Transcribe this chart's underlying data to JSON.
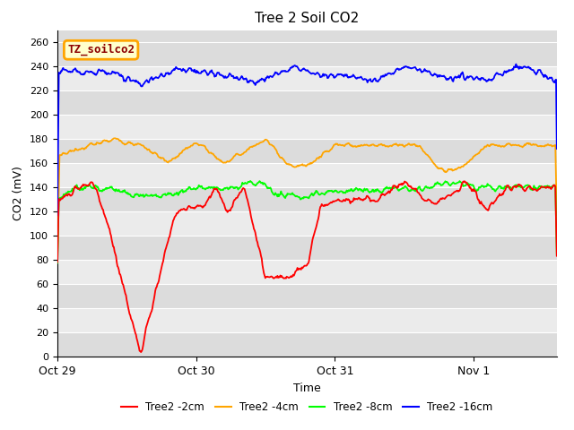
{
  "title": "Tree 2 Soil CO2",
  "xlabel": "Time",
  "ylabel": "CO2 (mV)",
  "ylim": [
    0,
    270
  ],
  "yticks": [
    0,
    20,
    40,
    60,
    80,
    100,
    120,
    140,
    160,
    180,
    200,
    220,
    240,
    260
  ],
  "annotation_text": "TZ_soilco2",
  "legend_labels": [
    "Tree2 -2cm",
    "Tree2 -4cm",
    "Tree2 -8cm",
    "Tree2 -16cm"
  ],
  "line_colors": [
    "red",
    "orange",
    "lime",
    "blue"
  ],
  "band_colors": [
    "#dcdcdc",
    "#ebebeb"
  ],
  "title_fontsize": 11,
  "figsize": [
    6.4,
    4.8
  ],
  "dpi": 100
}
